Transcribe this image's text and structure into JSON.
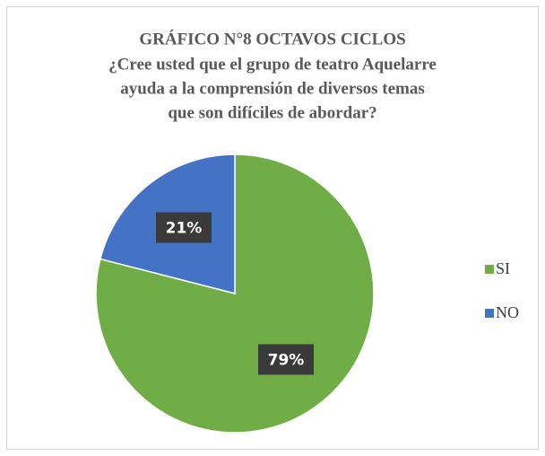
{
  "chart_data": {
    "type": "pie",
    "title": "GRÁFICO N°8 OCTAVOS CICLOS",
    "subtitle": [
      "¿Cree usted que el grupo de teatro Aquelarre",
      "ayuda a la comprensión de diversos temas",
      "que son difíciles de abordar?"
    ],
    "categories": [
      "SI",
      "NO"
    ],
    "values": [
      79,
      21
    ],
    "value_labels": [
      "79%",
      "21%"
    ],
    "colors": [
      "#70ad47",
      "#4472c4"
    ],
    "legend": "right"
  }
}
